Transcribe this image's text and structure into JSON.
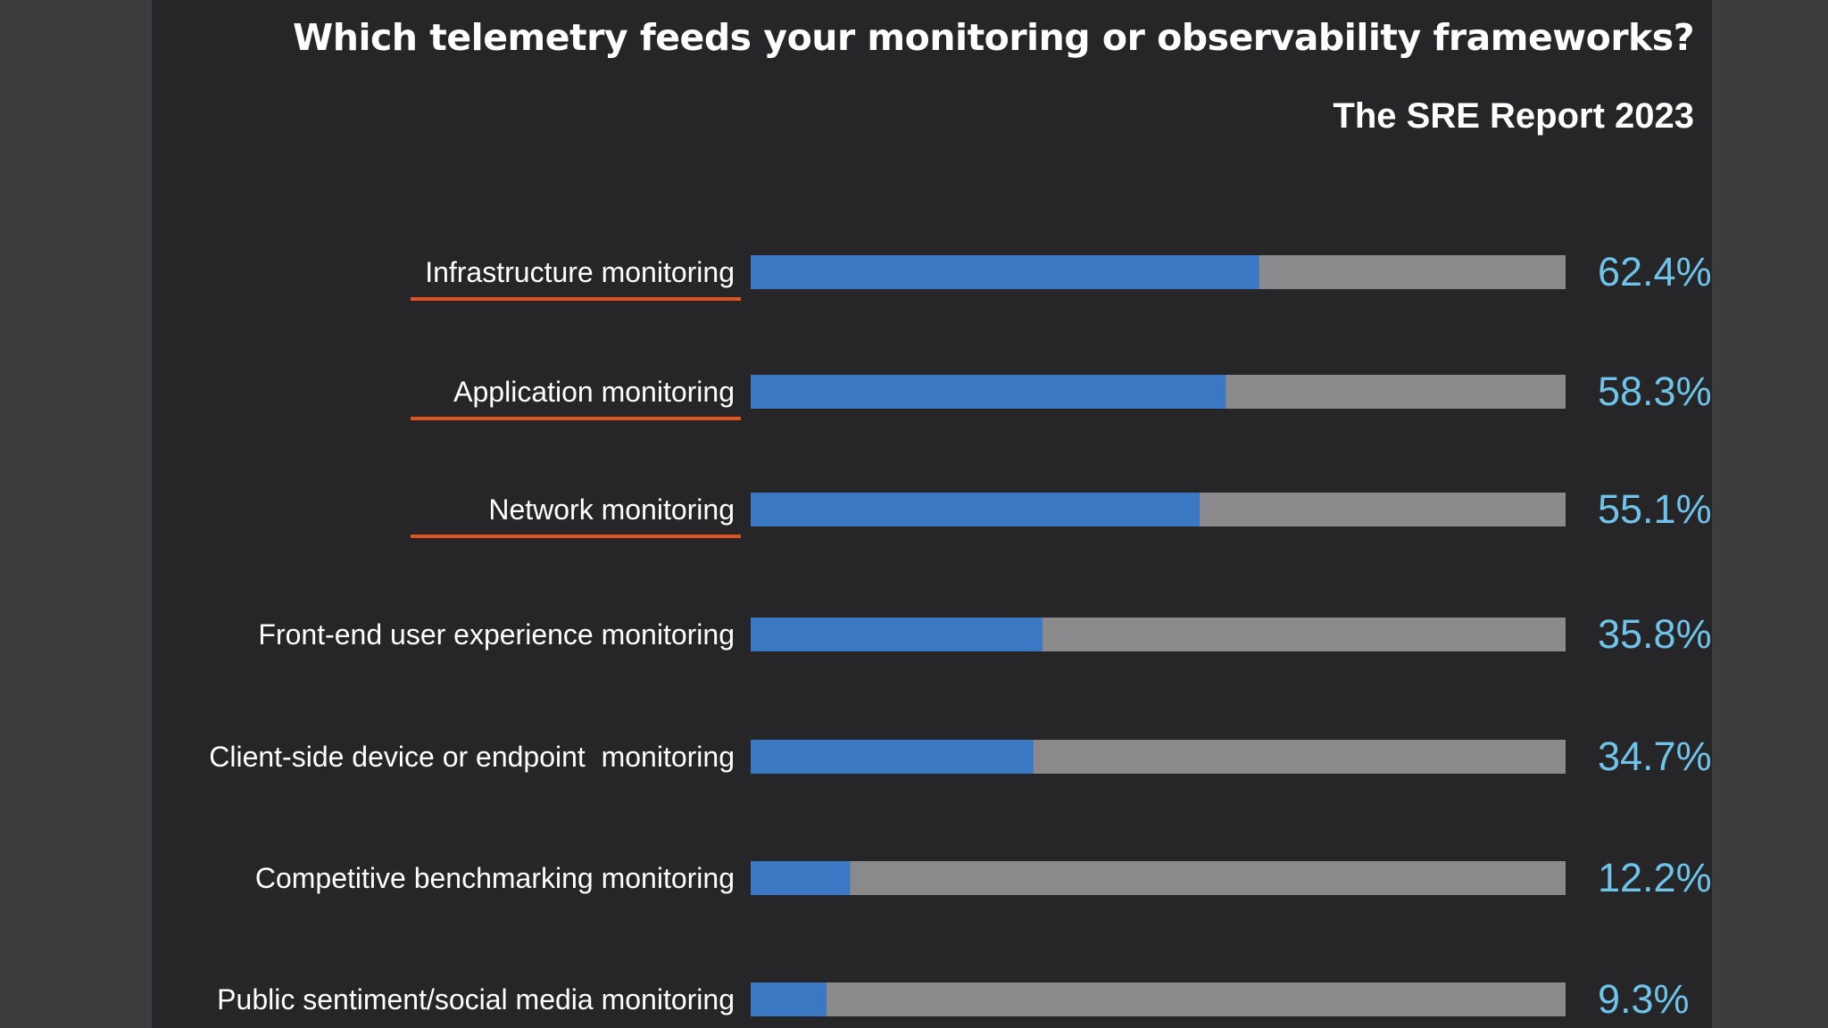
{
  "title": "Which telemetry feeds your monitoring or observability frameworks?",
  "subtitle": "The SRE Report 2023",
  "colors": {
    "bar_fill": "#3b78c4",
    "bar_track": "#8a898b",
    "value_text": "#6fc3e8",
    "underline": "#e0531f",
    "slide_bg": "#262628",
    "frame_bg": "#3d3d3d"
  },
  "chart_data": {
    "type": "bar",
    "orientation": "horizontal",
    "categories": [
      "Infrastructure monitoring",
      "Application monitoring",
      "Network monitoring",
      "Front-end user experience monitoring",
      "Client-side device or endpoint  monitoring",
      "Competitive benchmarking monitoring",
      "Public sentiment/social media monitoring"
    ],
    "values": [
      62.4,
      58.3,
      55.1,
      35.8,
      34.7,
      12.2,
      9.3
    ],
    "value_labels": [
      "62.4%",
      "58.3%",
      "55.1%",
      "35.8%",
      "34.7%",
      "12.2%",
      "9.3%"
    ],
    "xlim": [
      0,
      100
    ],
    "underlined_categories": [
      0,
      1,
      2
    ],
    "grid": false,
    "legend": "none"
  }
}
